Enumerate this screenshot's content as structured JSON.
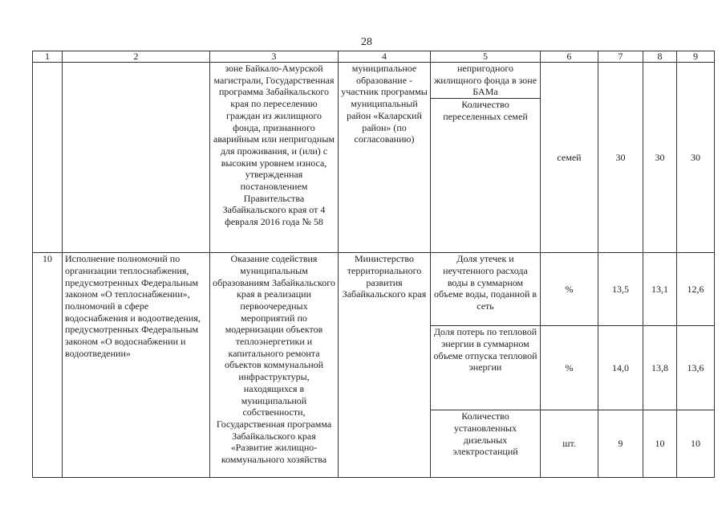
{
  "page_number": "28",
  "columns": [
    "1",
    "2",
    "3",
    "4",
    "5",
    "6",
    "7",
    "8",
    "9"
  ],
  "rows": [
    {
      "num": "",
      "task": "",
      "measure": "зоне Байкало-Амурской магистрали, Государственная программа Забайкальского края по переселению граждан из жилищного фонда, признанного аварийным или непригодным для проживания, и (или) с высоким уровнем износа, утвержденная постановлением Правительства Забайкальского края от 4 февраля 2016 года № 58",
      "executor": "муниципальное образование - участник программы муниципальный район «Каларский район» (по согласованию)",
      "indicators": [
        {
          "name": "непригодного жилищного фонда в зоне БАМа",
          "unit": "",
          "v7": "",
          "v8": "",
          "v9": ""
        },
        {
          "name": "Количество переселенных семей",
          "unit": "семей",
          "v7": "30",
          "v8": "30",
          "v9": "30"
        }
      ]
    },
    {
      "num": "10",
      "task": "Исполнение полномочий по организации теплоснабжения, предусмотренных Федеральным законом «О теплоснабжении», полномочий в сфере водоснабжения и водоотведения, предусмотренных Федеральным законом «О водоснабжении и водоотведении»",
      "measure": "Оказание содействия муниципальным образованиям Забайкальского края в реализации первоочередных мероприятий по модернизации объектов теплоэнергетики и капитального ремонта объектов коммунальной инфраструктуры, находящихся в муниципальной собственности, Государственная программа Забайкальского края «Развитие жилищно-коммунального хозяйства",
      "executor": "Министерство территориального развития Забайкальского края",
      "indicators": [
        {
          "name": "Доля утечек и неучтенного расхода воды в суммарном объеме воды, поданной в сеть",
          "unit": "%",
          "v7": "13,5",
          "v8": "13,1",
          "v9": "12,6"
        },
        {
          "name": "Доля потерь по тепловой энергии в суммарном объеме отпуска тепловой энергии",
          "unit": "%",
          "v7": "14,0",
          "v8": "13,8",
          "v9": "13,6"
        },
        {
          "name": "Количество установленных дизельных электростанций",
          "unit": "шт.",
          "v7": "9",
          "v8": "10",
          "v9": "10"
        }
      ]
    }
  ]
}
